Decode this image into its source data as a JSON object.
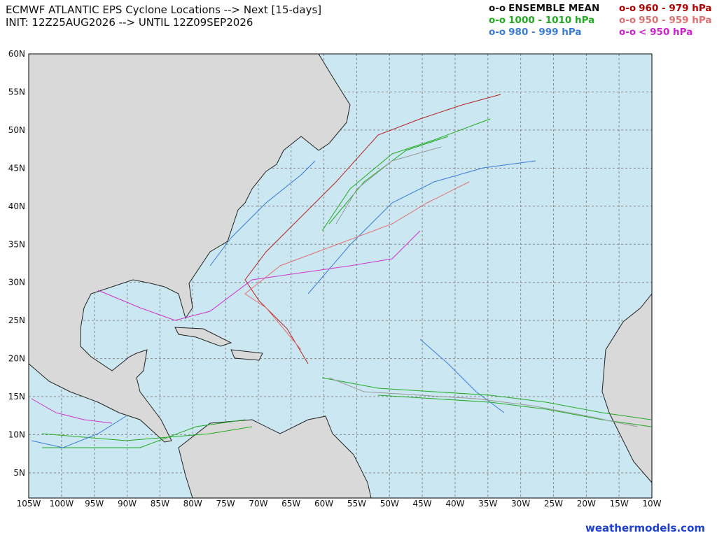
{
  "header": {
    "title": "ECMWF ATLANTIC EPS Cyclone Locations --> Next [15-days]",
    "subtitle": "INIT: 12Z25AUG2026 --> UNTIL 12Z09SEP2026"
  },
  "legend": [
    {
      "marker": "o-o",
      "label": "ENSEMBLE MEAN",
      "color": "#111111"
    },
    {
      "marker": "o-o",
      "label": "960 - 979 hPa",
      "color": "#b00000"
    },
    {
      "marker": "o-o",
      "label": "1000 - 1010 hPa",
      "color": "#22aa22"
    },
    {
      "marker": "o-o",
      "label": "950 - 959 hPa",
      "color": "#e07070"
    },
    {
      "marker": "o-o",
      "label": "980 - 999 hPa",
      "color": "#3a7bd5"
    },
    {
      "marker": "o-o",
      "label": "< 950 hPa",
      "color": "#cc22cc"
    }
  ],
  "map": {
    "lat_labels": [
      "60N",
      "55N",
      "50N",
      "45N",
      "40N",
      "35N",
      "30N",
      "25N",
      "20N",
      "15N",
      "10N",
      "5N"
    ],
    "lon_labels": [
      "105W",
      "100W",
      "95W",
      "90W",
      "85W",
      "80W",
      "75W",
      "70W",
      "65W",
      "60W",
      "55W",
      "50W",
      "45W",
      "40W",
      "35W",
      "30W",
      "25W",
      "20W",
      "15W",
      "10W"
    ]
  },
  "footer": "weathermodels.com"
}
